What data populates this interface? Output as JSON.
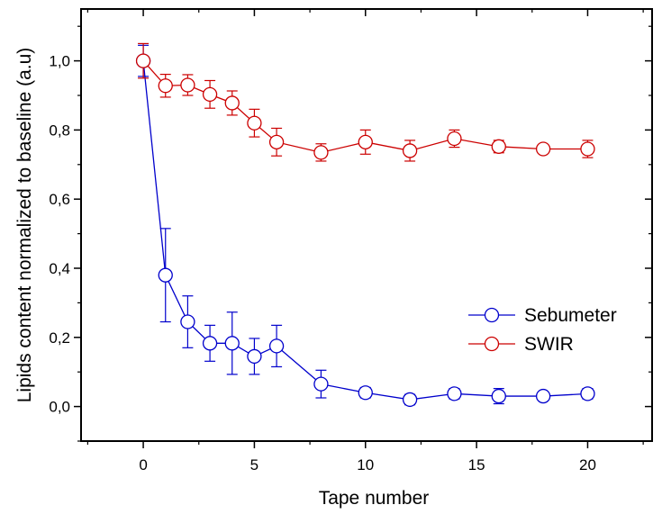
{
  "chart_data": {
    "type": "line",
    "xlabel": "Tape number",
    "ylabel": "Lipids content normalized to baseline (a.u)",
    "xlim": [
      -2.8,
      22.9
    ],
    "ylim": [
      -0.1,
      1.15
    ],
    "x_ticks": [
      0,
      5,
      10,
      15,
      20
    ],
    "x_tick_labels": [
      "0",
      "5",
      "10",
      "15",
      "20"
    ],
    "y_ticks": [
      0.0,
      0.2,
      0.4,
      0.6,
      0.8,
      1.0
    ],
    "y_tick_labels": [
      "0,0",
      "0,2",
      "0,4",
      "0,6",
      "0,8",
      "1,0"
    ],
    "grid": false,
    "legend_position": "right",
    "series": [
      {
        "name": "Sebumeter",
        "color": "#0000cc",
        "marker": "open-circle",
        "x": [
          0,
          1,
          2,
          3,
          4,
          5,
          6,
          8,
          10,
          12,
          14,
          16,
          18,
          20
        ],
        "y": [
          1.0,
          0.38,
          0.245,
          0.183,
          0.183,
          0.145,
          0.175,
          0.065,
          0.04,
          0.02,
          0.037,
          0.03,
          0.03,
          0.037
        ],
        "err": [
          0.045,
          0.135,
          0.075,
          0.052,
          0.09,
          0.052,
          0.06,
          0.04,
          0.015,
          0.015,
          0.015,
          0.022,
          0.012,
          0.015
        ]
      },
      {
        "name": "SWIR",
        "color": "#cc0000",
        "marker": "open-circle",
        "x": [
          0,
          1,
          2,
          3,
          4,
          5,
          6,
          8,
          10,
          12,
          14,
          16,
          18,
          20
        ],
        "y": [
          1.0,
          0.928,
          0.93,
          0.903,
          0.878,
          0.82,
          0.765,
          0.735,
          0.765,
          0.74,
          0.775,
          0.752,
          0.745,
          0.745
        ],
        "err": [
          0.05,
          0.033,
          0.03,
          0.04,
          0.035,
          0.04,
          0.04,
          0.025,
          0.035,
          0.03,
          0.025,
          0.018,
          0.008,
          0.025
        ]
      }
    ]
  }
}
